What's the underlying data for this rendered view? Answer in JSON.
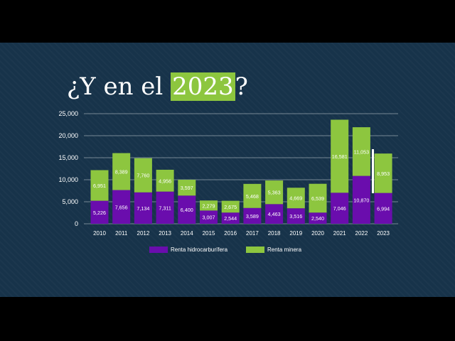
{
  "title": {
    "prefix": "¿Y en el ",
    "highlight": "2023",
    "suffix": "?"
  },
  "colors": {
    "background": "#17334a",
    "hidrocarburifera": "#6a0dad",
    "minera": "#8dc63f",
    "highlight": "#8dc63f"
  },
  "chart_data": {
    "type": "bar",
    "stacked": true,
    "categories": [
      "2010",
      "2011",
      "2012",
      "2013",
      "2014",
      "2015",
      "2016",
      "2017",
      "2018",
      "2019",
      "2020",
      "2021",
      "2022",
      "2023"
    ],
    "series": [
      {
        "name": "Renta hidrocarburífera",
        "color": "#6a0dad",
        "values": [
          5226,
          7656,
          7134,
          7311,
          6400,
          3007,
          2544,
          3589,
          4463,
          3516,
          2540,
          7046,
          10870,
          6994
        ],
        "labels": [
          "5,226",
          "7,656",
          "7,134",
          "7,311",
          "6,400",
          "3,007",
          "2,544",
          "3,589",
          "4,463",
          "3,516",
          "2,540",
          "7,046",
          "10,870",
          "6,994"
        ]
      },
      {
        "name": "Renta minera",
        "color": "#8dc63f",
        "values": [
          6951,
          8389,
          7760,
          4956,
          3597,
          2279,
          2675,
          5468,
          5363,
          4669,
          6539,
          16581,
          11053,
          8953
        ],
        "labels": [
          "6,951",
          "8,389",
          "7,760",
          "4,956",
          "3,597",
          "2,279",
          "2,675",
          "5,468",
          "5,363",
          "4,669",
          "6,539",
          "16,581",
          "11,053",
          "8,953"
        ]
      }
    ],
    "ylim": [
      0,
      25000
    ],
    "yticks": [
      "0",
      "5,000",
      "10,000",
      "15,000",
      "20,000",
      "25,000"
    ],
    "ytick_values": [
      0,
      5000,
      10000,
      15000,
      20000,
      25000
    ],
    "grid": true,
    "legend_position": "bottom-center"
  }
}
